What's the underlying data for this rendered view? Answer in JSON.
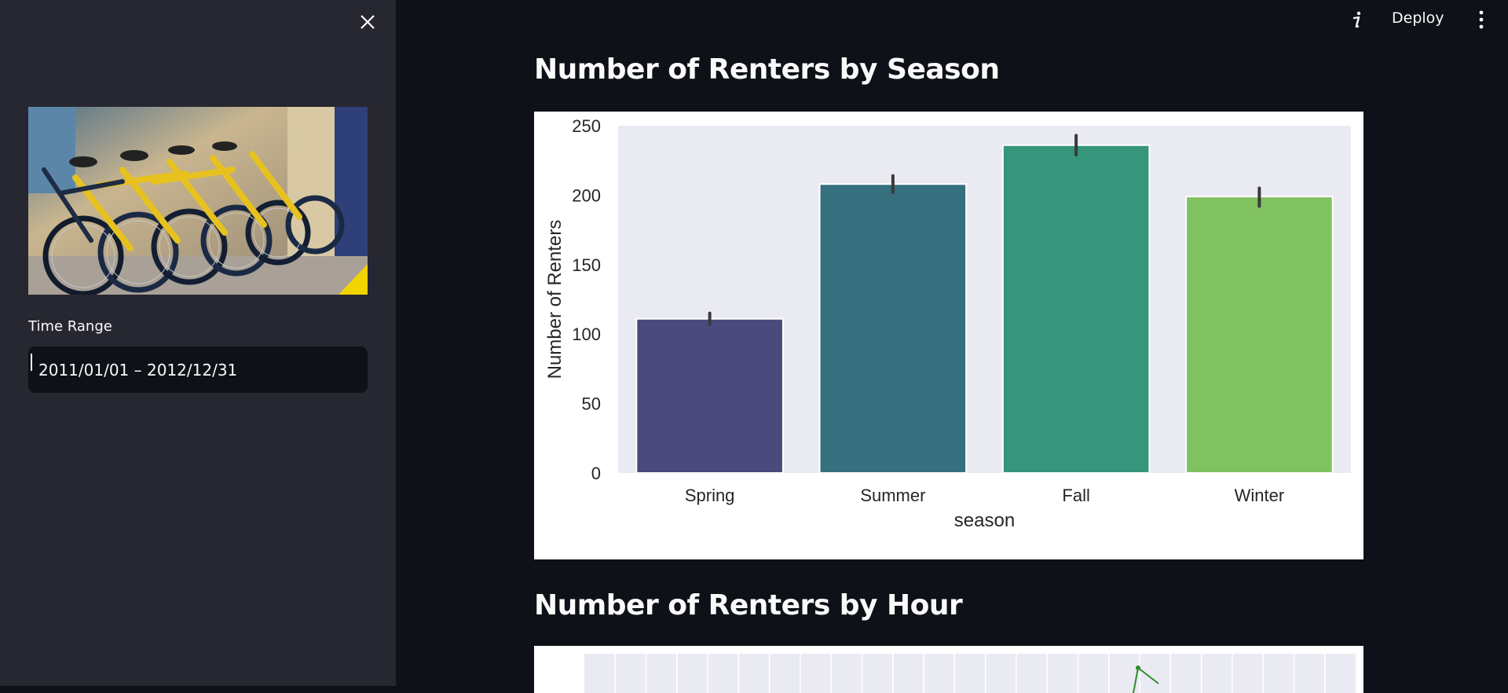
{
  "sidebar": {
    "close_icon": "close-icon",
    "image_alt": "bicycles",
    "time_range_label": "Time Range",
    "time_range_value": "2011/01/01 – 2012/12/31"
  },
  "toolbar": {
    "info_icon": "info-icon",
    "deploy_label": "Deploy",
    "menu_icon": "kebab-menu-icon"
  },
  "main": {
    "title_season": "Number of Renters by Season",
    "title_hour": "Number of Renters by Hour"
  },
  "chart_data": [
    {
      "type": "bar",
      "categories": [
        "Spring",
        "Summer",
        "Fall",
        "Winter"
      ],
      "values": [
        111,
        208,
        236,
        199
      ],
      "error": [
        [
          107,
          115
        ],
        [
          202,
          214
        ],
        [
          229,
          243
        ],
        [
          192,
          205
        ]
      ],
      "colors": [
        "#482878",
        "#31688e",
        "#35b779",
        "#90d743"
      ],
      "bar_colors_rendered": [
        "#4a4a7c",
        "#36707f",
        "#35967b",
        "#80c160"
      ],
      "xlabel": "season",
      "ylabel": "Number of Renters",
      "ylim": [
        0,
        250
      ],
      "yticks": [
        0,
        50,
        100,
        150,
        200,
        250
      ],
      "grid": false,
      "background": "#eaeaf2"
    },
    {
      "type": "line",
      "title": "",
      "partial": true,
      "line_color": "#2e8b2e"
    }
  ]
}
